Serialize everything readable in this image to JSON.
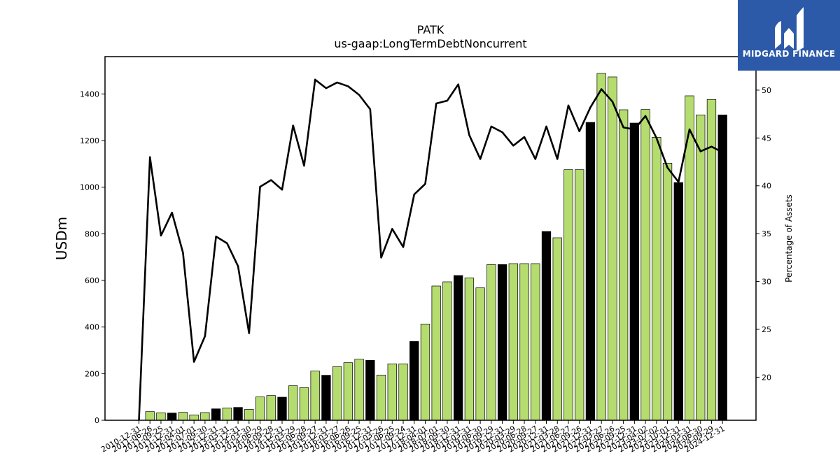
{
  "logo": {
    "text": "MIDGARD FINANCE",
    "bg_color": "#2d5aa8",
    "fg_color": "#ffffff"
  },
  "chart_data": {
    "type": "bar+line",
    "title": "PATK",
    "subtitle": "us-gaap:LongTermDebtNoncurrent",
    "ylabel": "USDm",
    "y2label": "Percentage of Assets",
    "ylim": [
      0,
      1560
    ],
    "y2lim": [
      15.5,
      53.5
    ],
    "yticks": [
      0,
      200,
      400,
      600,
      800,
      1000,
      1200,
      1400
    ],
    "y2ticks": [
      20,
      25,
      30,
      35,
      40,
      45,
      50
    ],
    "bar_color": "#b5dc6e",
    "highlight_color": "#000000",
    "line_color": "#000000",
    "x_labels": [
      "2010-12-31",
      "2011-06-26",
      "2011-09-25",
      "2011-12-31",
      "2012-04-01",
      "2012-07-01",
      "2012-09-30",
      "2012-12-31",
      "2013-03-31",
      "2013-12-31",
      "2014-03-30",
      "2014-06-29",
      "2014-09-28",
      "2014-12-31",
      "2015-03-29",
      "2015-06-28",
      "2015-09-27",
      "2015-12-31",
      "2016-03-27",
      "2016-06-26",
      "2016-09-25",
      "2016-12-31",
      "2017-03-26",
      "2017-06-25",
      "2017-09-24",
      "2017-12-31",
      "2018-04-01",
      "2018-07-01",
      "2018-09-30",
      "2018-12-31",
      "2019-03-31",
      "2019-06-30",
      "2019-09-29",
      "2019-12-31",
      "2020-03-29",
      "2020-06-28",
      "2020-09-27",
      "2020-12-31",
      "2021-03-28",
      "2021-06-27",
      "2021-09-26",
      "2021-12-31",
      "2022-03-27",
      "2022-06-26",
      "2022-09-25",
      "2022-12-31",
      "2023-04-02",
      "2023-07-02",
      "2023-10-01",
      "2023-12-31",
      "2024-03-31",
      "2024-06-30",
      "2024-09-29",
      "2024-12-31"
    ],
    "bars": [
      0,
      37,
      32,
      31,
      34,
      23,
      33,
      49,
      53,
      55,
      47,
      100,
      106,
      99,
      148,
      140,
      211,
      193,
      230,
      247,
      262,
      257,
      194,
      242,
      242,
      338,
      413,
      576,
      594,
      621,
      611,
      568,
      668,
      668,
      672,
      672,
      672,
      810,
      783,
      1075,
      1075,
      1278,
      1488,
      1473,
      1332,
      1275,
      1333,
      1214,
      1103,
      1020,
      1392,
      1310,
      1376,
      1310
    ],
    "bar_highlight": [
      false,
      false,
      false,
      true,
      false,
      false,
      false,
      true,
      false,
      true,
      false,
      false,
      false,
      true,
      false,
      false,
      false,
      true,
      false,
      false,
      false,
      true,
      false,
      false,
      false,
      true,
      false,
      false,
      false,
      true,
      false,
      false,
      false,
      true,
      false,
      false,
      false,
      true,
      false,
      false,
      false,
      true,
      false,
      false,
      false,
      true,
      false,
      false,
      false,
      true,
      false,
      false,
      false,
      true
    ],
    "pct_of_assets": [
      15.5,
      43.0,
      34.8,
      37.2,
      33.0,
      21.6,
      24.3,
      34.7,
      34.0,
      31.6,
      24.6,
      39.9,
      40.6,
      39.6,
      46.3,
      42.1,
      51.1,
      50.2,
      50.8,
      50.4,
      49.5,
      48.0,
      32.5,
      35.5,
      33.6,
      39.1,
      40.2,
      48.6,
      48.9,
      50.6,
      45.3,
      42.8,
      46.2,
      45.6,
      44.2,
      45.1,
      42.8,
      46.2,
      42.8,
      48.4,
      45.7,
      48.2,
      50.1,
      48.8,
      46.1,
      45.9,
      47.3,
      45.0,
      41.9,
      40.4,
      45.9,
      43.6,
      44.1,
      43.5
    ]
  }
}
